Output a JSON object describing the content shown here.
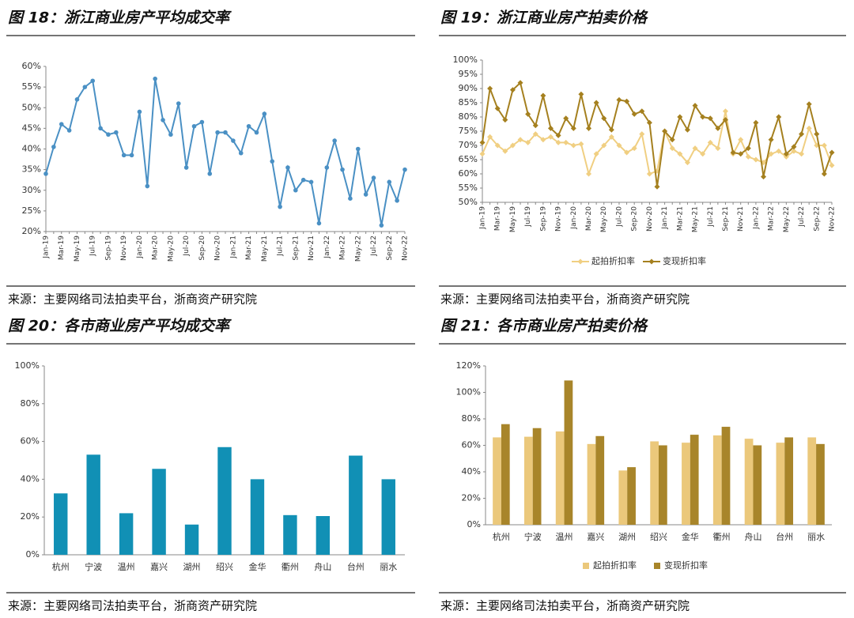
{
  "chart_data": [
    {
      "type": "line",
      "title": "图 18：浙江商业房产平均成交率",
      "source": "来源：主要网络司法拍卖平台，浙商资产研究院",
      "categories": [
        "Jan-19",
        null,
        "Mar-19",
        null,
        "May-19",
        null,
        "Jul-19",
        null,
        "Sep-19",
        null,
        "Nov-19",
        null,
        "Jan-20",
        null,
        "Mar-20",
        null,
        "May-20",
        null,
        "Jul-20",
        null,
        "Sep-20",
        null,
        "Nov-20",
        null,
        "Jan-21",
        null,
        "Mar-21",
        null,
        "May-21",
        null,
        "Jul-21",
        null,
        "Sep-21",
        null,
        "Nov-21",
        null,
        "Jan-22",
        null,
        "Mar-22",
        null,
        "May-22",
        null,
        "Jul-22",
        null,
        "Sep-22",
        null,
        "Nov-22"
      ],
      "values": [
        34,
        40.5,
        46,
        44.5,
        52,
        55,
        56.5,
        45,
        43.5,
        44,
        38.5,
        38.5,
        49,
        31,
        57,
        47,
        43.5,
        51,
        35.5,
        45.5,
        46.5,
        34,
        44,
        44,
        42,
        39,
        45.5,
        44,
        48.5,
        37,
        26,
        35.5,
        30,
        32.5,
        32,
        22,
        35.5,
        42,
        35,
        28,
        40,
        29,
        33,
        21.5,
        32,
        27.5,
        35
      ],
      "color": "#4a90c4",
      "ylim": [
        20,
        60
      ],
      "yticks": [
        {
          "value": 20,
          "label": "20%"
        },
        {
          "value": 25,
          "label": "25%"
        },
        {
          "value": 30,
          "label": "30%"
        },
        {
          "value": 35,
          "label": "35%"
        },
        {
          "value": 40,
          "label": "40%"
        },
        {
          "value": 45,
          "label": "45%"
        },
        {
          "value": 50,
          "label": "50%"
        },
        {
          "value": 55,
          "label": "55%"
        },
        {
          "value": 60,
          "label": "60%"
        }
      ]
    },
    {
      "type": "line",
      "title": "图 19：浙江商业房产拍卖价格",
      "source": "来源：主要网络司法拍卖平台，浙商资产研究院",
      "categories": [
        "Jan-19",
        null,
        "Mar-19",
        null,
        "May-19",
        null,
        "Jul-19",
        null,
        "Sep-19",
        null,
        "Nov-19",
        null,
        "Jan-20",
        null,
        "Mar-20",
        null,
        "May-20",
        null,
        "Jul-20",
        null,
        "Sep-20",
        null,
        "Nov-20",
        null,
        "Jan-21",
        null,
        "Mar-21",
        null,
        "May-21",
        null,
        "Jul-21",
        null,
        "Sep-21",
        null,
        "Nov-21",
        null,
        "Jan-22",
        null,
        "Mar-22",
        null,
        "May-22",
        null,
        "Jul-22",
        null,
        "Sep-22",
        null,
        "Nov-22"
      ],
      "series": [
        {
          "name": "起拍折扣率",
          "color": "#f0cf82",
          "values": [
            67,
            73,
            70,
            68,
            70,
            72,
            71,
            74,
            72,
            73,
            71,
            71,
            70,
            70.5,
            60,
            67,
            70,
            73,
            70,
            67.5,
            69,
            74,
            60,
            61,
            75,
            69,
            67,
            64,
            69,
            67,
            71,
            69,
            82,
            67,
            72,
            66,
            65,
            64,
            67,
            68,
            66,
            68,
            67,
            76,
            70,
            70,
            63
          ]
        },
        {
          "name": "变现折扣率",
          "color": "#a5801f",
          "values": [
            71,
            90,
            83,
            79,
            89.5,
            92,
            81,
            77,
            87.5,
            76,
            73.5,
            79.5,
            76,
            88,
            76,
            85,
            79.5,
            75.5,
            86,
            85.5,
            81,
            82,
            78,
            55.5,
            75,
            72,
            80,
            75.5,
            84,
            80,
            79.5,
            76,
            79,
            67.5,
            67,
            69,
            78,
            59,
            72,
            80,
            67,
            69.5,
            74,
            84.5,
            74,
            60,
            67.5
          ]
        }
      ],
      "ylim": [
        50,
        100
      ],
      "yticks": [
        {
          "value": 50,
          "label": "50%"
        },
        {
          "value": 55,
          "label": "55%"
        },
        {
          "value": 60,
          "label": "60%"
        },
        {
          "value": 65,
          "label": "65%"
        },
        {
          "value": 70,
          "label": "70%"
        },
        {
          "value": 75,
          "label": "75%"
        },
        {
          "value": 80,
          "label": "80%"
        },
        {
          "value": 85,
          "label": "85%"
        },
        {
          "value": 90,
          "label": "90%"
        },
        {
          "value": 95,
          "label": "95%"
        },
        {
          "value": 100,
          "label": "100%"
        }
      ],
      "legend": "bottom"
    },
    {
      "type": "bar",
      "title": "图 20：各市商业房产平均成交率",
      "source": "来源：主要网络司法拍卖平台，浙商资产研究院",
      "categories": [
        "杭州",
        "宁波",
        "温州",
        "嘉兴",
        "湖州",
        "绍兴",
        "金华",
        "衢州",
        "舟山",
        "台州",
        "丽水"
      ],
      "values": [
        32.5,
        53,
        22,
        45.5,
        16,
        57,
        40,
        21,
        20.5,
        52.5,
        40
      ],
      "color": "#1190b5",
      "ylim": [
        0,
        100
      ],
      "yticks": [
        {
          "value": 0,
          "label": "0%"
        },
        {
          "value": 20,
          "label": "20%"
        },
        {
          "value": 40,
          "label": "40%"
        },
        {
          "value": 60,
          "label": "60%"
        },
        {
          "value": 80,
          "label": "80%"
        },
        {
          "value": 100,
          "label": "100%"
        }
      ]
    },
    {
      "type": "grouped_bar",
      "title": "图 21：各市商业房产拍卖价格",
      "source": "来源：主要网络司法拍卖平台，浙商资产研究院",
      "categories": [
        "杭州",
        "宁波",
        "温州",
        "嘉兴",
        "湖州",
        "绍兴",
        "金华",
        "衢州",
        "舟山",
        "台州",
        "丽水"
      ],
      "series": [
        {
          "name": "起拍折扣率",
          "color": "#ebc87b",
          "values": [
            66,
            66.5,
            70.5,
            61,
            41,
            63,
            62,
            67.5,
            65,
            62,
            66
          ]
        },
        {
          "name": "变现折扣率",
          "color": "#a8852a",
          "values": [
            76,
            73,
            109,
            67,
            43.5,
            60,
            68,
            74,
            60,
            66,
            61
          ]
        }
      ],
      "ylim": [
        0,
        120
      ],
      "yticks": [
        {
          "value": 0,
          "label": "0%"
        },
        {
          "value": 20,
          "label": "20%"
        },
        {
          "value": 40,
          "label": "40%"
        },
        {
          "value": 60,
          "label": "60%"
        },
        {
          "value": 80,
          "label": "80%"
        },
        {
          "value": 100,
          "label": "100%"
        },
        {
          "value": 120,
          "label": "120%"
        }
      ],
      "legend": "bottom"
    }
  ]
}
